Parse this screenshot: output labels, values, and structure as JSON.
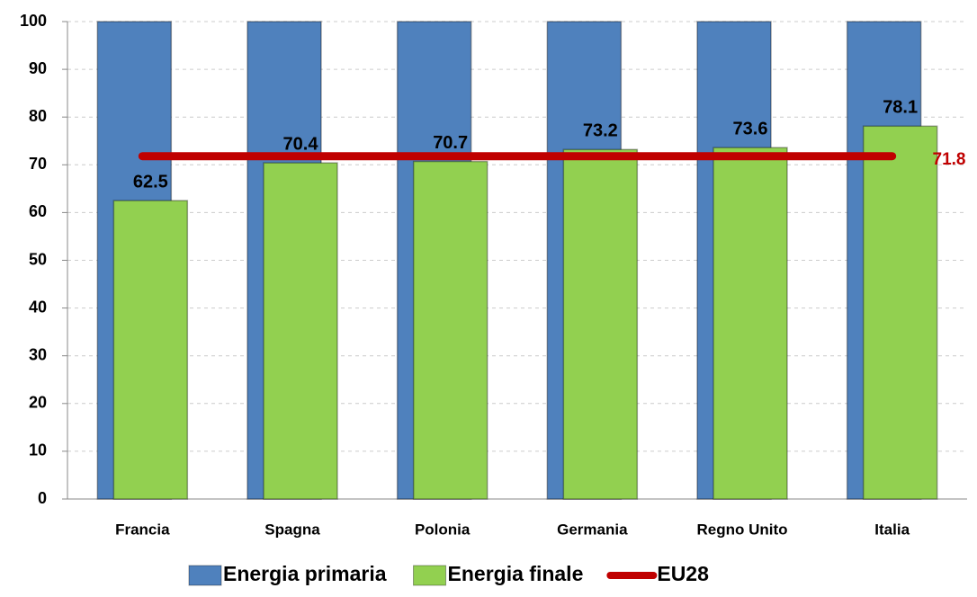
{
  "chart_data": {
    "type": "bar",
    "categories": [
      "Francia",
      "Spagna",
      "Polonia",
      "Germania",
      "Regno Unito",
      "Italia"
    ],
    "series": [
      {
        "name": "Energia primaria",
        "color": "#4f81bd",
        "values": [
          100,
          100,
          100,
          100,
          100,
          100
        ]
      },
      {
        "name": "Energia finale",
        "color": "#92d050",
        "values": [
          62.5,
          70.4,
          70.7,
          73.2,
          73.6,
          78.1
        ]
      },
      {
        "name": "EU28",
        "type": "line",
        "color": "#c00000",
        "values": [
          71.8,
          71.8,
          71.8,
          71.8,
          71.8,
          71.8
        ]
      }
    ],
    "ylim": [
      0,
      100
    ],
    "yticks": [
      0,
      10,
      20,
      30,
      40,
      50,
      60,
      70,
      80,
      90,
      100
    ],
    "grid": true,
    "legend": "bottom"
  }
}
